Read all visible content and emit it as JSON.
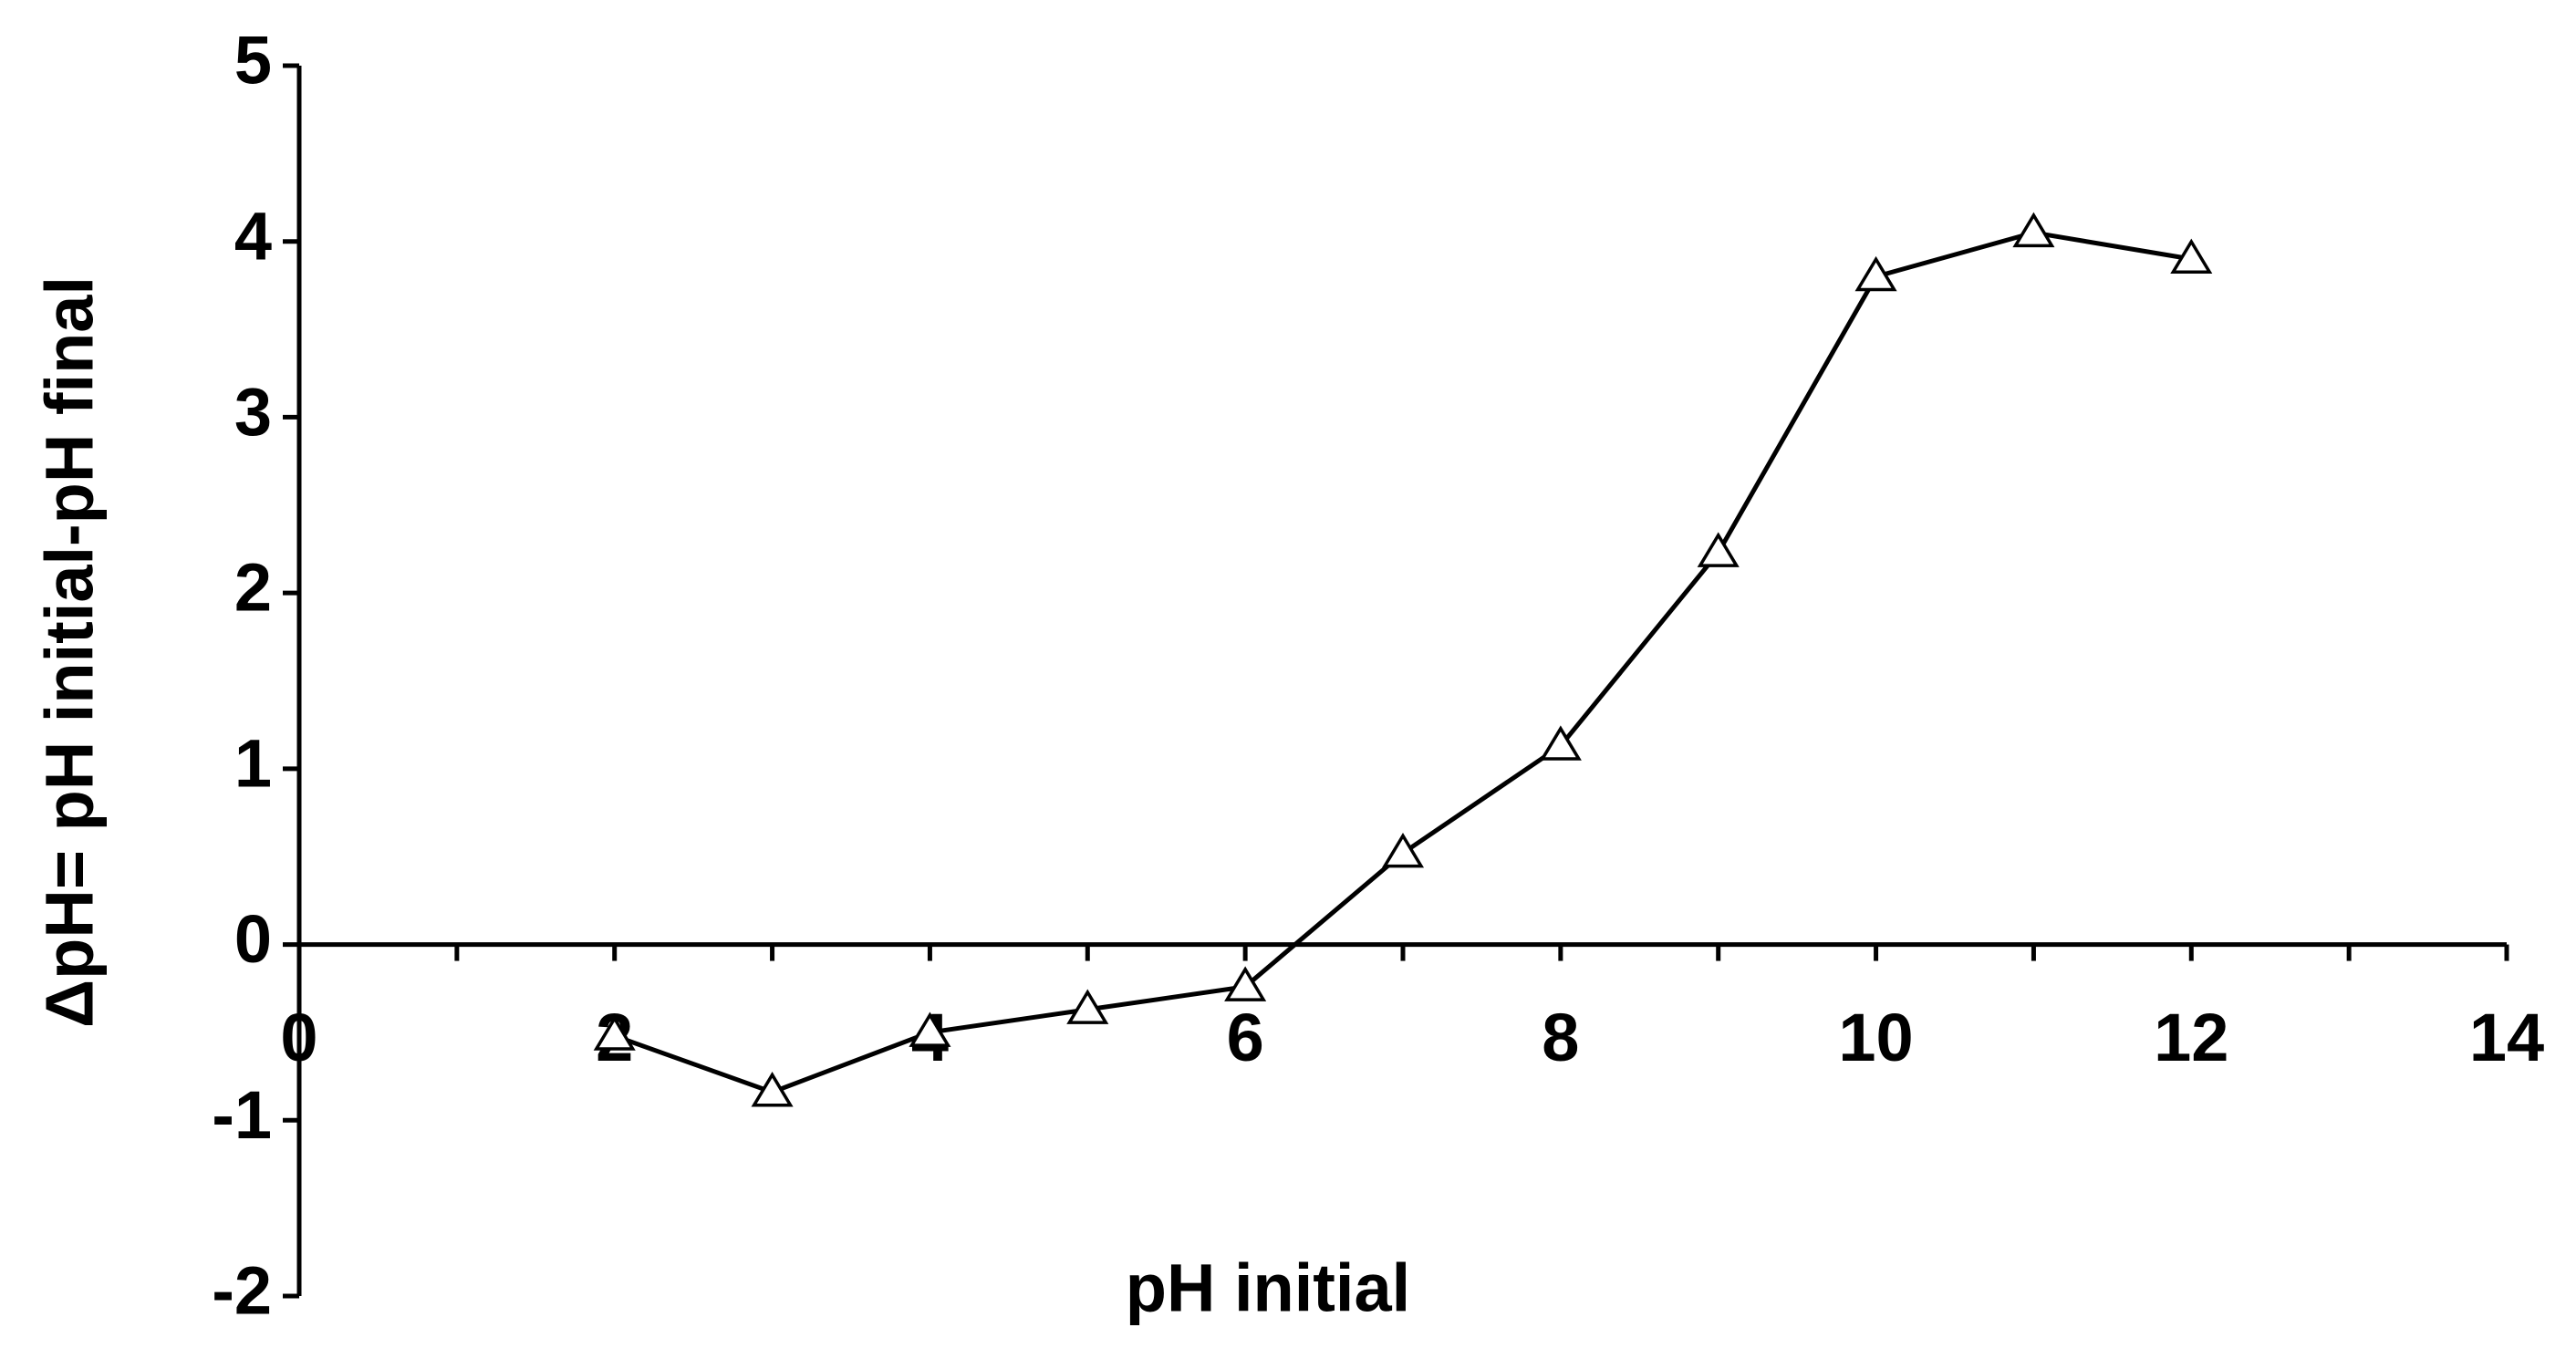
{
  "chart_data": {
    "type": "line",
    "x_label": "pH initial",
    "y_label": "ΔpH= pH initial-pH final",
    "x": [
      2,
      3,
      4,
      5,
      6,
      7,
      8,
      9,
      10,
      11,
      12
    ],
    "series": [
      {
        "color": "#000000",
        "values": [
          -0.52,
          -0.84,
          -0.5,
          -0.37,
          -0.24,
          0.52,
          1.13,
          2.23,
          3.8,
          4.05,
          3.9
        ]
      }
    ],
    "xlim": [
      0,
      14
    ],
    "ylim": [
      -2,
      5
    ],
    "xticks": [
      0,
      2,
      4,
      6,
      8,
      10,
      12,
      14
    ],
    "xminorticks": [
      1,
      3,
      5,
      7,
      9,
      11,
      13
    ],
    "yticks": [
      -2,
      -1,
      0,
      1,
      2,
      3,
      4,
      5
    ],
    "marker": "triangle",
    "grid": false
  }
}
